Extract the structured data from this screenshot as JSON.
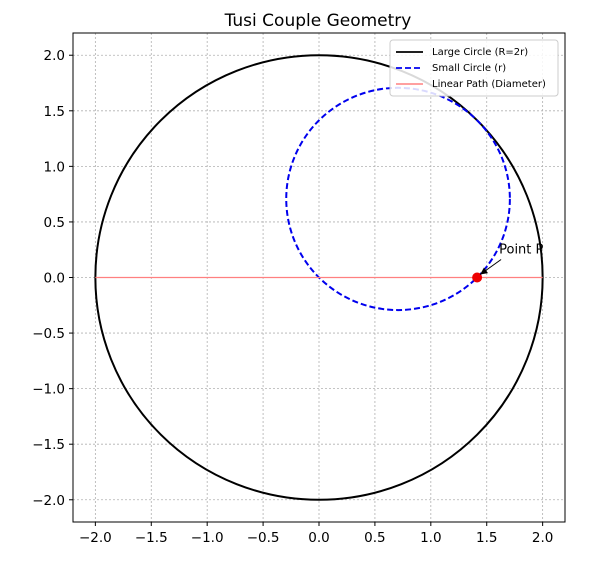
{
  "chart_data": {
    "type": "line",
    "title": "Tusi Couple Geometry",
    "xlabel": "",
    "ylabel": "",
    "xlim": [
      -2.2,
      2.2
    ],
    "ylim": [
      -2.2,
      2.2
    ],
    "grid": true,
    "legend_position": "top-right",
    "x_ticks": [
      "−2.0",
      "−1.5",
      "−1.0",
      "−0.5",
      "0.0",
      "0.5",
      "1.0",
      "1.5",
      "2.0"
    ],
    "y_ticks": [
      "2.0",
      "1.5",
      "1.0",
      "0.5",
      "0.0",
      "−0.5",
      "−1.0",
      "−1.5",
      "−2.0"
    ],
    "series": [
      {
        "name": "Large Circle (R=2r)",
        "kind": "circle",
        "center": [
          0,
          0
        ],
        "radius": 2.0,
        "color": "#000000",
        "dash": "solid"
      },
      {
        "name": "Small Circle (r)",
        "kind": "circle",
        "center": [
          0.707,
          0.707
        ],
        "radius": 1.0,
        "color": "#0000ee",
        "dash": "dashed"
      },
      {
        "name": "Linear Path (Diameter)",
        "kind": "segment",
        "x": [
          -2.0,
          2.0
        ],
        "y": [
          0,
          0
        ],
        "color": "#ff8080",
        "dash": "solid"
      }
    ],
    "points": [
      {
        "label": "Point P",
        "x": 1.414,
        "y": 0.0,
        "color": "#ee0000"
      }
    ]
  }
}
